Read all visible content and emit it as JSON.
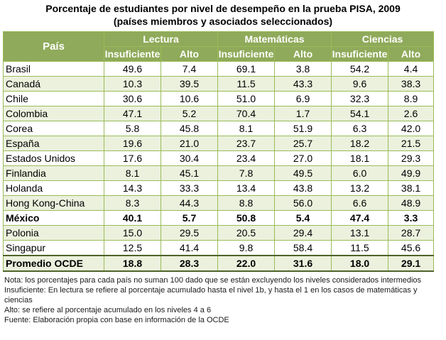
{
  "title_line1": "Porcentaje de estudiantes por nivel de desempeño en la prueba PISA, 2009",
  "title_line2": "(países miembros y asociados seleccionados)",
  "header": {
    "pais": "País",
    "lectura": "Lectura",
    "matematicas": "Matemáticas",
    "ciencias": "Ciencias",
    "insuficiente": "Insuficiente",
    "alto": "Alto"
  },
  "rows": [
    {
      "pais": "Brasil",
      "v": [
        "49.6",
        "7.4",
        "69.1",
        "3.8",
        "54.2",
        "4.4"
      ]
    },
    {
      "pais": "Canadá",
      "v": [
        "10.3",
        "39.5",
        "11.5",
        "43.3",
        "9.6",
        "38.3"
      ]
    },
    {
      "pais": "Chile",
      "v": [
        "30.6",
        "10.6",
        "51.0",
        "6.9",
        "32.3",
        "8.9"
      ]
    },
    {
      "pais": "Colombia",
      "v": [
        "47.1",
        "5.2",
        "70.4",
        "1.7",
        "54.1",
        "2.6"
      ]
    },
    {
      "pais": "Corea",
      "v": [
        "5.8",
        "45.8",
        "8.1",
        "51.9",
        "6.3",
        "42.0"
      ]
    },
    {
      "pais": "España",
      "v": [
        "19.6",
        "21.0",
        "23.7",
        "25.7",
        "18.2",
        "21.5"
      ]
    },
    {
      "pais": "Estados Unidos",
      "v": [
        "17.6",
        "30.4",
        "23.4",
        "27.0",
        "18.1",
        "29.3"
      ]
    },
    {
      "pais": "Finlandia",
      "v": [
        "8.1",
        "45.1",
        "7.8",
        "49.5",
        "6.0",
        "49.9"
      ]
    },
    {
      "pais": "Holanda",
      "v": [
        "14.3",
        "33.3",
        "13.4",
        "43.8",
        "13.2",
        "38.1"
      ]
    },
    {
      "pais": "Hong Kong-China",
      "v": [
        "8.3",
        "44.3",
        "8.8",
        "56.0",
        "6.6",
        "48.9"
      ]
    },
    {
      "pais": "México",
      "v": [
        "40.1",
        "5.7",
        "50.8",
        "5.4",
        "47.4",
        "3.3"
      ]
    },
    {
      "pais": "Polonia",
      "v": [
        "15.0",
        "29.5",
        "20.5",
        "29.4",
        "13.1",
        "28.7"
      ]
    },
    {
      "pais": "Singapur",
      "v": [
        "12.5",
        "41.4",
        "9.8",
        "58.4",
        "11.5",
        "45.6"
      ]
    },
    {
      "pais": "Promedio OCDE",
      "v": [
        "18.8",
        "28.3",
        "22.0",
        "31.6",
        "18.0",
        "29.1"
      ]
    }
  ],
  "notes": [
    "Nota: los porcentajes para cada país no suman 100 dado que se están excluyendo los niveles considerados intermedios",
    "Insuficiente: En lectura se refiere al porcentaje acumulado hasta el nivel 1b, y hasta el 1 en los casos de matemáticas y ciencias",
    "Alto: se refiere al porcentaje acumulado en los niveles 4 a 6",
    "Fuente: Elaboración propia con base en información de la OCDE"
  ],
  "colors": {
    "header_bg": "#8faa5a",
    "stripe": "#ebf1dd",
    "border": "#9bbb59"
  }
}
